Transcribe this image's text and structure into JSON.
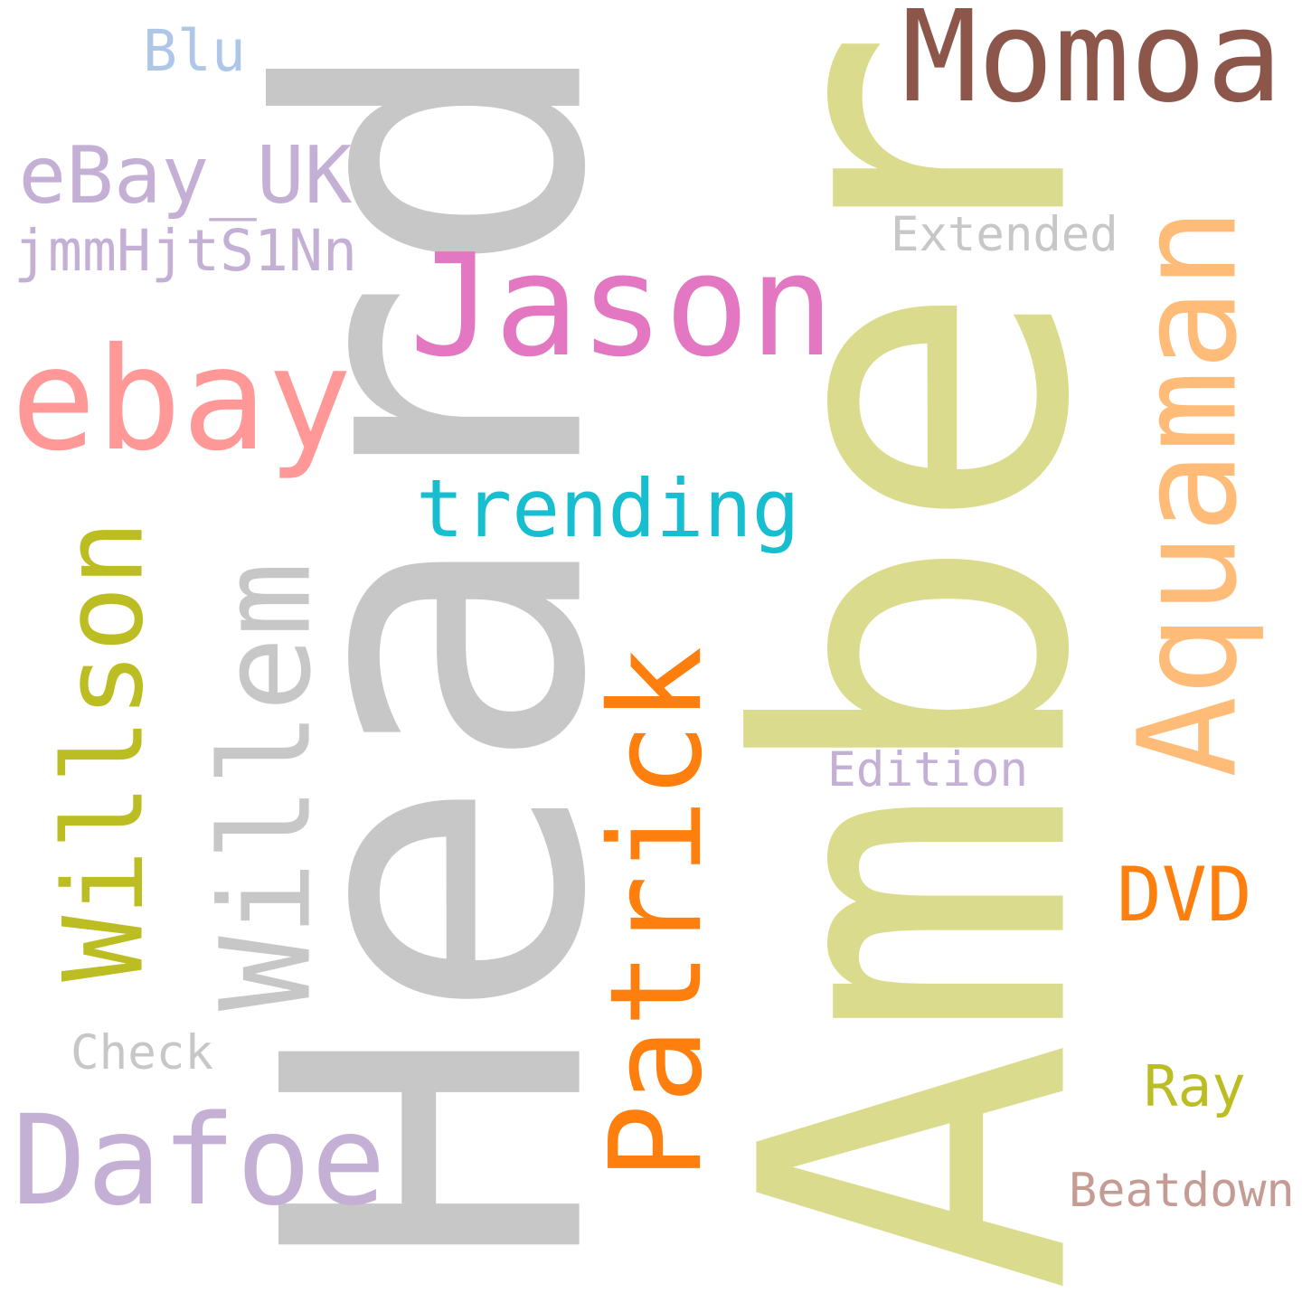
{
  "words": [
    {
      "id": "heard",
      "text": "Heard",
      "color": "#c7c7c7",
      "orientation": "vertical"
    },
    {
      "id": "amber",
      "text": "Amber",
      "color": "#dbdb8d",
      "orientation": "vertical"
    },
    {
      "id": "momoa",
      "text": "Momoa",
      "color": "#8c564b",
      "orientation": "horizontal"
    },
    {
      "id": "jason",
      "text": "Jason",
      "color": "#e377c2",
      "orientation": "horizontal"
    },
    {
      "id": "ebay",
      "text": "ebay",
      "color": "#ff9896",
      "orientation": "horizontal"
    },
    {
      "id": "ebay-uk",
      "text": "eBay_UK",
      "color": "#c5b0d5",
      "orientation": "horizontal"
    },
    {
      "id": "jmm",
      "text": "jmmHjtS1Nn",
      "color": "#c5b0d5",
      "orientation": "horizontal"
    },
    {
      "id": "blu",
      "text": "Blu",
      "color": "#aec7e8",
      "orientation": "horizontal"
    },
    {
      "id": "trending",
      "text": "trending",
      "color": "#17becf",
      "orientation": "horizontal"
    },
    {
      "id": "aquaman",
      "text": "Aquaman",
      "color": "#ffbb78",
      "orientation": "vertical"
    },
    {
      "id": "extended",
      "text": "Extended",
      "color": "#c7c7c7",
      "orientation": "horizontal"
    },
    {
      "id": "willson",
      "text": "Willson",
      "color": "#bcbd22",
      "orientation": "vertical"
    },
    {
      "id": "willem",
      "text": "Willem",
      "color": "#c7c7c7",
      "orientation": "vertical"
    },
    {
      "id": "patrick",
      "text": "Patrick",
      "color": "#ff7f0e",
      "orientation": "vertical"
    },
    {
      "id": "edition",
      "text": "Edition",
      "color": "#c5b0d5",
      "orientation": "horizontal"
    },
    {
      "id": "dvd",
      "text": "DVD",
      "color": "#ff7f0e",
      "orientation": "horizontal"
    },
    {
      "id": "check",
      "text": "Check",
      "color": "#c7c7c7",
      "orientation": "horizontal"
    },
    {
      "id": "ray",
      "text": "Ray",
      "color": "#bcbd22",
      "orientation": "horizontal"
    },
    {
      "id": "dafoe",
      "text": "Dafoe",
      "color": "#c5b0d5",
      "orientation": "horizontal"
    },
    {
      "id": "beatdown",
      "text": "Beatdown",
      "color": "#c49c94",
      "orientation": "horizontal"
    }
  ]
}
